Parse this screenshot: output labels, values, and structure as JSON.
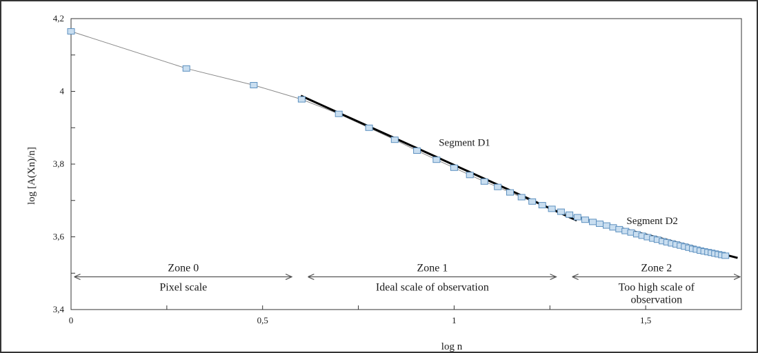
{
  "chart_data": {
    "type": "scatter",
    "xlabel": "log n",
    "ylabel": "log [A(Xn)/n]",
    "xlim": [
      0,
      1.75
    ],
    "ylim": [
      3.4,
      4.2
    ],
    "x_ticks": [
      {
        "value": 0,
        "label": "0"
      },
      {
        "value": 0.5,
        "label": "0,5"
      },
      {
        "value": 1,
        "label": "1"
      },
      {
        "value": 1.5,
        "label": "1,5"
      }
    ],
    "y_ticks": [
      {
        "value": 3.4,
        "label": "3,4"
      },
      {
        "value": 3.6,
        "label": "3,6"
      },
      {
        "value": 3.8,
        "label": "3,8"
      },
      {
        "value": 4.0,
        "label": "4"
      },
      {
        "value": 4.2,
        "label": "4,2"
      }
    ],
    "grid": false,
    "colors": {
      "marker_fill": "#c9def0",
      "marker_stroke": "#5b8fbf",
      "data_line": "#888888",
      "segment": "#000000",
      "arrow": "#555555"
    },
    "series": [
      {
        "x": [
          0,
          0.301,
          0.477,
          0.602,
          0.699,
          0.778,
          0.845,
          0.903,
          0.954,
          1.0,
          1.041,
          1.079,
          1.114,
          1.146,
          1.176,
          1.204,
          1.23,
          1.255,
          1.279,
          1.301,
          1.322,
          1.342,
          1.362,
          1.38,
          1.398,
          1.415,
          1.431,
          1.447,
          1.462,
          1.477,
          1.491,
          1.505,
          1.519,
          1.531,
          1.544,
          1.556,
          1.568,
          1.58,
          1.591,
          1.602,
          1.613,
          1.623,
          1.633,
          1.643,
          1.653,
          1.663,
          1.672,
          1.681,
          1.69,
          1.699,
          1.708
        ],
        "y": [
          4.165,
          4.063,
          4.017,
          3.978,
          3.938,
          3.9,
          3.867,
          3.837,
          3.812,
          3.79,
          3.77,
          3.752,
          3.737,
          3.722,
          3.709,
          3.697,
          3.687,
          3.677,
          3.669,
          3.661,
          3.654,
          3.647,
          3.641,
          3.636,
          3.631,
          3.626,
          3.621,
          3.616,
          3.612,
          3.607,
          3.603,
          3.599,
          3.595,
          3.592,
          3.588,
          3.585,
          3.582,
          3.579,
          3.576,
          3.573,
          3.57,
          3.567,
          3.565,
          3.562,
          3.56,
          3.558,
          3.556,
          3.554,
          3.552,
          3.55,
          3.548
        ]
      }
    ],
    "segments": [
      {
        "label": "Segment D1",
        "x1": 0.6,
        "y1": 3.988,
        "x2": 1.32,
        "y2": 3.645,
        "label_x": 0.96,
        "label_y": 3.85
      },
      {
        "label": "Segment D2",
        "x1": 1.32,
        "y1": 3.655,
        "x2": 1.74,
        "y2": 3.542,
        "label_x": 1.45,
        "label_y": 3.635
      }
    ],
    "zones": [
      {
        "label": "Zone 0",
        "desc": [
          "Pixel scale"
        ],
        "x_start": 0.01,
        "x_end": 0.58
      },
      {
        "label": "Zone 1",
        "desc": [
          "Ideal scale of observation"
        ],
        "x_start": 0.62,
        "x_end": 1.27
      },
      {
        "label": "Zone 2",
        "desc": [
          "Too high scale of",
          "observation"
        ],
        "x_start": 1.31,
        "x_end": 1.75
      }
    ],
    "zone_arrow_y": 3.49
  }
}
